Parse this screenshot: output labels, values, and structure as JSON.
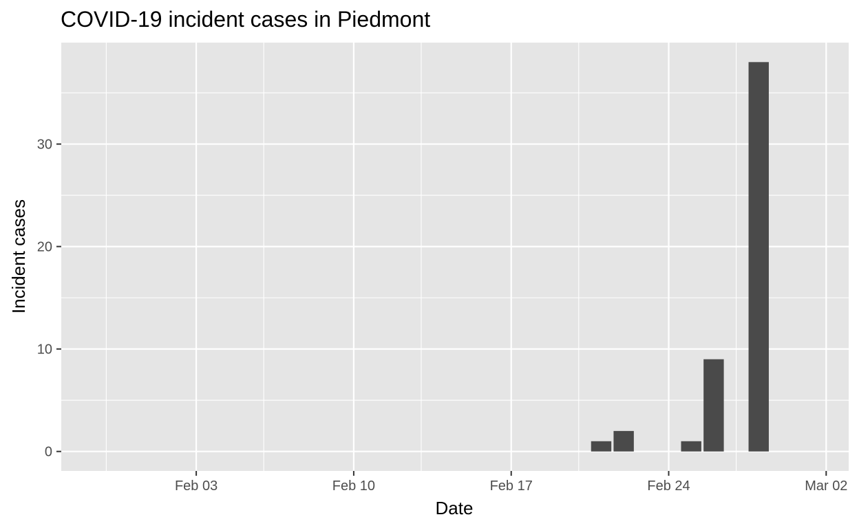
{
  "chart_data": {
    "type": "bar",
    "title": "COVID-19 incident cases in Piedmont",
    "xlabel": "Date",
    "ylabel": "Incident cases",
    "x_ticks": [
      "Feb 03",
      "Feb 10",
      "Feb 17",
      "Feb 24",
      "Mar 02"
    ],
    "y_ticks": [
      "0",
      "10",
      "20",
      "30"
    ],
    "y_tick_values": [
      0,
      10,
      20,
      30
    ],
    "x_tick_dates": [
      "2020-02-03",
      "2020-02-10",
      "2020-02-17",
      "2020-02-24",
      "2020-03-02"
    ],
    "x_minor_dates": [
      "2020-01-30",
      "2020-02-06",
      "2020-02-13",
      "2020-02-20",
      "2020-02-27"
    ],
    "xlim": [
      "2020-01-28",
      "2020-03-03"
    ],
    "ylim": [
      -1.9,
      39.9
    ],
    "grid": true,
    "dates": [
      "2020-02-21",
      "2020-02-22",
      "2020-02-25",
      "2020-02-26",
      "2020-02-28"
    ],
    "values": [
      1,
      2,
      1,
      9,
      38
    ],
    "colors": {
      "panel": "#e5e5e5",
      "grid": "#ffffff",
      "bar": "#4a4a4a",
      "tick": "#333333"
    }
  }
}
